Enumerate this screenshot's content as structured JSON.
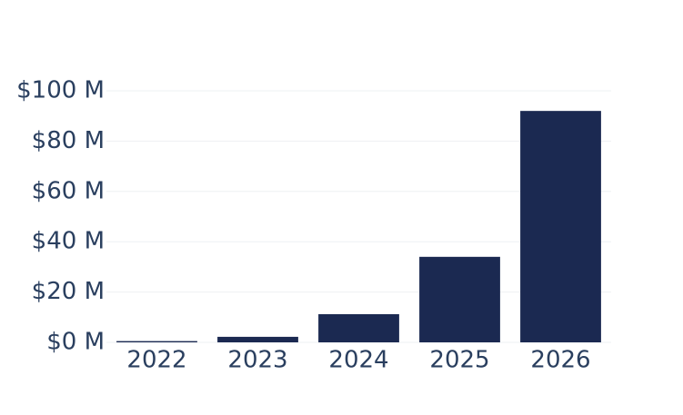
{
  "chart_data": {
    "type": "bar",
    "categories": [
      "2022",
      "2023",
      "2024",
      "2025",
      "2026"
    ],
    "values": [
      0.5,
      2.2,
      11.2,
      34,
      92
    ],
    "color": "#1b2951",
    "ylim": [
      0,
      100
    ],
    "yticks": [
      {
        "value": 0,
        "label": "$0 M"
      },
      {
        "value": 20,
        "label": "$20 M"
      },
      {
        "value": 40,
        "label": "$40 M"
      },
      {
        "value": 60,
        "label": "$60 M"
      },
      {
        "value": 80,
        "label": "$80 M"
      },
      {
        "value": 100,
        "label": "$100 M"
      }
    ],
    "grid": true
  }
}
